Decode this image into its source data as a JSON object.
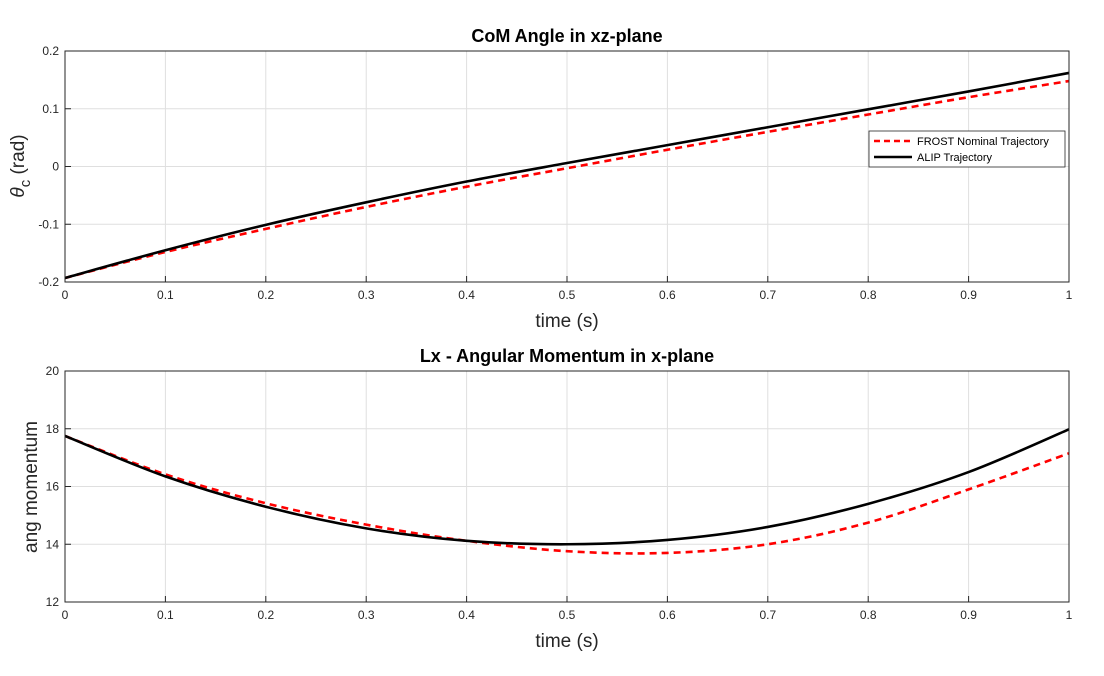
{
  "chart_data": [
    {
      "type": "line",
      "title": "CoM Angle in xz-plane",
      "xlabel": "time (s)",
      "ylabel": "θ",
      "ylabel_sub": "c",
      "ylabel_unit": " (rad)",
      "xlim": [
        0,
        1
      ],
      "ylim": [
        -0.2,
        0.2
      ],
      "xticks": [
        0,
        0.1,
        0.2,
        0.3,
        0.4,
        0.5,
        0.6,
        0.7,
        0.8,
        0.9,
        1
      ],
      "xtick_labels": [
        "0",
        "0.1",
        "0.2",
        "0.3",
        "0.4",
        "0.5",
        "0.6",
        "0.7",
        "0.8",
        "0.9",
        "1"
      ],
      "yticks": [
        -0.2,
        -0.1,
        0,
        0.1,
        0.2
      ],
      "ytick_labels": [
        "-0.2",
        "-0.1",
        "0",
        "0.1",
        "0.2"
      ],
      "grid": true,
      "legend": "right",
      "x": [
        0,
        0.1,
        0.2,
        0.3,
        0.4,
        0.5,
        0.6,
        0.7,
        0.8,
        0.9,
        1.0
      ],
      "series": [
        {
          "name": "FROST Nominal Trajectory",
          "color": "#ff0000",
          "dash": true,
          "values": [
            -0.193,
            -0.148,
            -0.108,
            -0.07,
            -0.035,
            -0.003,
            0.029,
            0.06,
            0.09,
            0.12,
            0.148
          ]
        },
        {
          "name": "ALIP Trajectory",
          "color": "#000000",
          "dash": false,
          "values": [
            -0.193,
            -0.145,
            -0.101,
            -0.062,
            -0.026,
            0.006,
            0.037,
            0.068,
            0.099,
            0.13,
            0.162
          ]
        }
      ]
    },
    {
      "type": "line",
      "title": "Lx - Angular Momentum in x-plane",
      "xlabel": "time (s)",
      "ylabel": "ang momentum",
      "xlim": [
        0,
        1
      ],
      "ylim": [
        12,
        20
      ],
      "xticks": [
        0,
        0.1,
        0.2,
        0.3,
        0.4,
        0.5,
        0.6,
        0.7,
        0.8,
        0.9,
        1
      ],
      "xtick_labels": [
        "0",
        "0.1",
        "0.2",
        "0.3",
        "0.4",
        "0.5",
        "0.6",
        "0.7",
        "0.8",
        "0.9",
        "1"
      ],
      "yticks": [
        12,
        14,
        16,
        18,
        20
      ],
      "ytick_labels": [
        "12",
        "14",
        "16",
        "18",
        "20"
      ],
      "grid": true,
      "x": [
        0,
        0.1,
        0.2,
        0.3,
        0.4,
        0.5,
        0.6,
        0.7,
        0.8,
        0.9,
        1.0
      ],
      "series": [
        {
          "color": "#ff0000",
          "dash": true,
          "values": [
            17.75,
            16.42,
            15.42,
            14.68,
            14.12,
            13.76,
            13.7,
            14.0,
            14.75,
            15.9,
            17.15
          ]
        },
        {
          "color": "#000000",
          "dash": false,
          "values": [
            17.75,
            16.35,
            15.3,
            14.55,
            14.12,
            14.0,
            14.15,
            14.6,
            15.4,
            16.5,
            17.98
          ]
        }
      ]
    }
  ]
}
